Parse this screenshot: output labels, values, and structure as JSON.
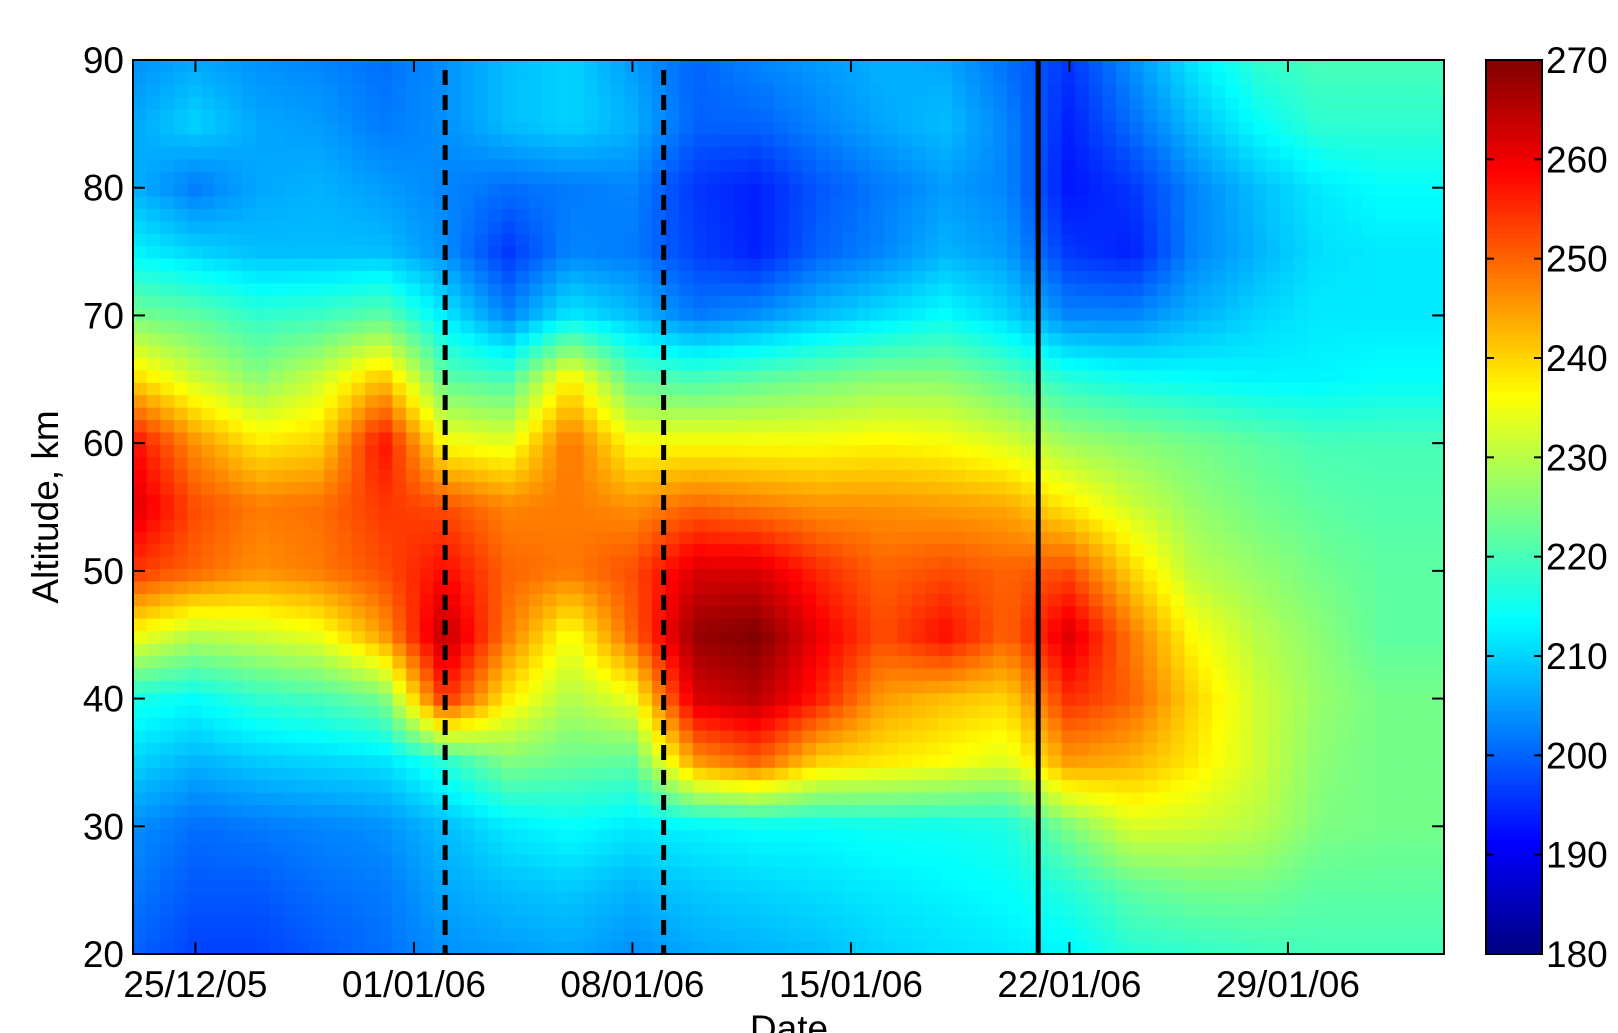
{
  "chart_data": {
    "type": "heatmap",
    "title": "",
    "xlabel": "Date",
    "ylabel": "Altitude, km",
    "x_ticks": [
      "25/12/05",
      "01/01/06",
      "08/01/06",
      "15/01/06",
      "22/01/06",
      "29/01/06"
    ],
    "x_tick_dates": [
      "2005-12-25",
      "2006-01-01",
      "2006-01-08",
      "2006-01-15",
      "2006-01-22",
      "2006-01-29"
    ],
    "xlim": [
      "2005-12-23",
      "2006-02-03"
    ],
    "ylim": [
      20,
      90
    ],
    "y_ticks": [
      20,
      30,
      40,
      50,
      60,
      70,
      80,
      90
    ],
    "colorbar": {
      "range": [
        180,
        270
      ],
      "ticks": [
        180,
        190,
        200,
        210,
        220,
        230,
        240,
        250,
        260,
        270
      ],
      "colormap": "jet",
      "position": "right"
    },
    "grid": false,
    "vertical_lines": [
      {
        "date": "2006-01-02",
        "style": "dashed"
      },
      {
        "date": "2006-01-09",
        "style": "dashed"
      },
      {
        "date": "2006-01-21",
        "style": "solid"
      }
    ],
    "altitudes": [
      20,
      25,
      30,
      35,
      40,
      45,
      50,
      55,
      60,
      65,
      70,
      75,
      80,
      85,
      90
    ],
    "dates": [
      "2005-12-23",
      "2005-12-25",
      "2005-12-27",
      "2005-12-29",
      "2005-12-31",
      "2006-01-02",
      "2006-01-04",
      "2006-01-06",
      "2006-01-08",
      "2006-01-10",
      "2006-01-12",
      "2006-01-14",
      "2006-01-16",
      "2006-01-18",
      "2006-01-20",
      "2006-01-22",
      "2006-01-24",
      "2006-01-26",
      "2006-01-28",
      "2006-01-30",
      "2006-02-01",
      "2006-02-03"
    ],
    "values": [
      [
        200,
        197,
        197,
        199,
        201,
        204,
        205,
        206,
        204,
        206,
        207,
        208,
        210,
        211,
        212,
        213,
        217,
        218,
        219,
        220,
        220,
        220
      ],
      [
        202,
        199,
        199,
        201,
        202,
        206,
        208,
        209,
        207,
        209,
        210,
        211,
        212,
        213,
        214,
        217,
        222,
        224,
        224,
        222,
        222,
        222
      ],
      [
        204,
        201,
        202,
        203,
        204,
        208,
        212,
        214,
        212,
        213,
        214,
        214,
        215,
        215,
        216,
        225,
        233,
        232,
        230,
        225,
        224,
        224
      ],
      [
        210,
        207,
        209,
        210,
        211,
        217,
        225,
        223,
        222,
        245,
        250,
        240,
        238,
        236,
        233,
        245,
        243,
        238,
        232,
        226,
        224,
        224
      ],
      [
        216,
        214,
        218,
        220,
        224,
        255,
        238,
        229,
        235,
        262,
        265,
        256,
        245,
        242,
        240,
        255,
        250,
        240,
        232,
        227,
        224,
        224
      ],
      [
        236,
        230,
        232,
        235,
        245,
        265,
        248,
        235,
        250,
        268,
        270,
        260,
        252,
        258,
        250,
        262,
        248,
        236,
        230,
        226,
        222,
        222
      ],
      [
        254,
        250,
        246,
        248,
        252,
        258,
        250,
        248,
        252,
        262,
        262,
        255,
        250,
        252,
        250,
        252,
        240,
        230,
        227,
        224,
        222,
        222
      ],
      [
        262,
        252,
        248,
        249,
        254,
        252,
        247,
        248,
        246,
        250,
        248,
        246,
        246,
        245,
        244,
        238,
        232,
        227,
        224,
        222,
        221,
        221
      ],
      [
        258,
        246,
        238,
        240,
        258,
        236,
        234,
        249,
        236,
        236,
        236,
        236,
        237,
        236,
        233,
        228,
        226,
        224,
        222,
        220,
        220,
        220
      ],
      [
        240,
        232,
        226,
        232,
        242,
        222,
        220,
        238,
        222,
        220,
        222,
        224,
        226,
        226,
        222,
        217,
        215,
        214,
        213,
        213,
        214,
        214
      ],
      [
        224,
        222,
        218,
        219,
        222,
        212,
        203,
        212,
        208,
        202,
        204,
        208,
        211,
        214,
        210,
        203,
        203,
        207,
        210,
        212,
        212,
        212
      ],
      [
        213,
        210,
        208,
        208,
        208,
        204,
        196,
        203,
        202,
        197,
        194,
        200,
        203,
        207,
        205,
        196,
        194,
        203,
        207,
        211,
        212,
        212
      ],
      [
        207,
        202,
        206,
        207,
        205,
        203,
        201,
        202,
        203,
        196,
        194,
        199,
        202,
        205,
        203,
        193,
        196,
        203,
        208,
        212,
        214,
        214
      ],
      [
        206,
        210,
        206,
        205,
        202,
        204,
        208,
        210,
        207,
        200,
        200,
        203,
        206,
        208,
        203,
        194,
        201,
        208,
        214,
        218,
        218,
        218
      ],
      [
        204,
        206,
        204,
        203,
        201,
        204,
        208,
        210,
        205,
        200,
        203,
        205,
        207,
        206,
        201,
        196,
        204,
        212,
        218,
        220,
        220,
        220
      ]
    ]
  }
}
